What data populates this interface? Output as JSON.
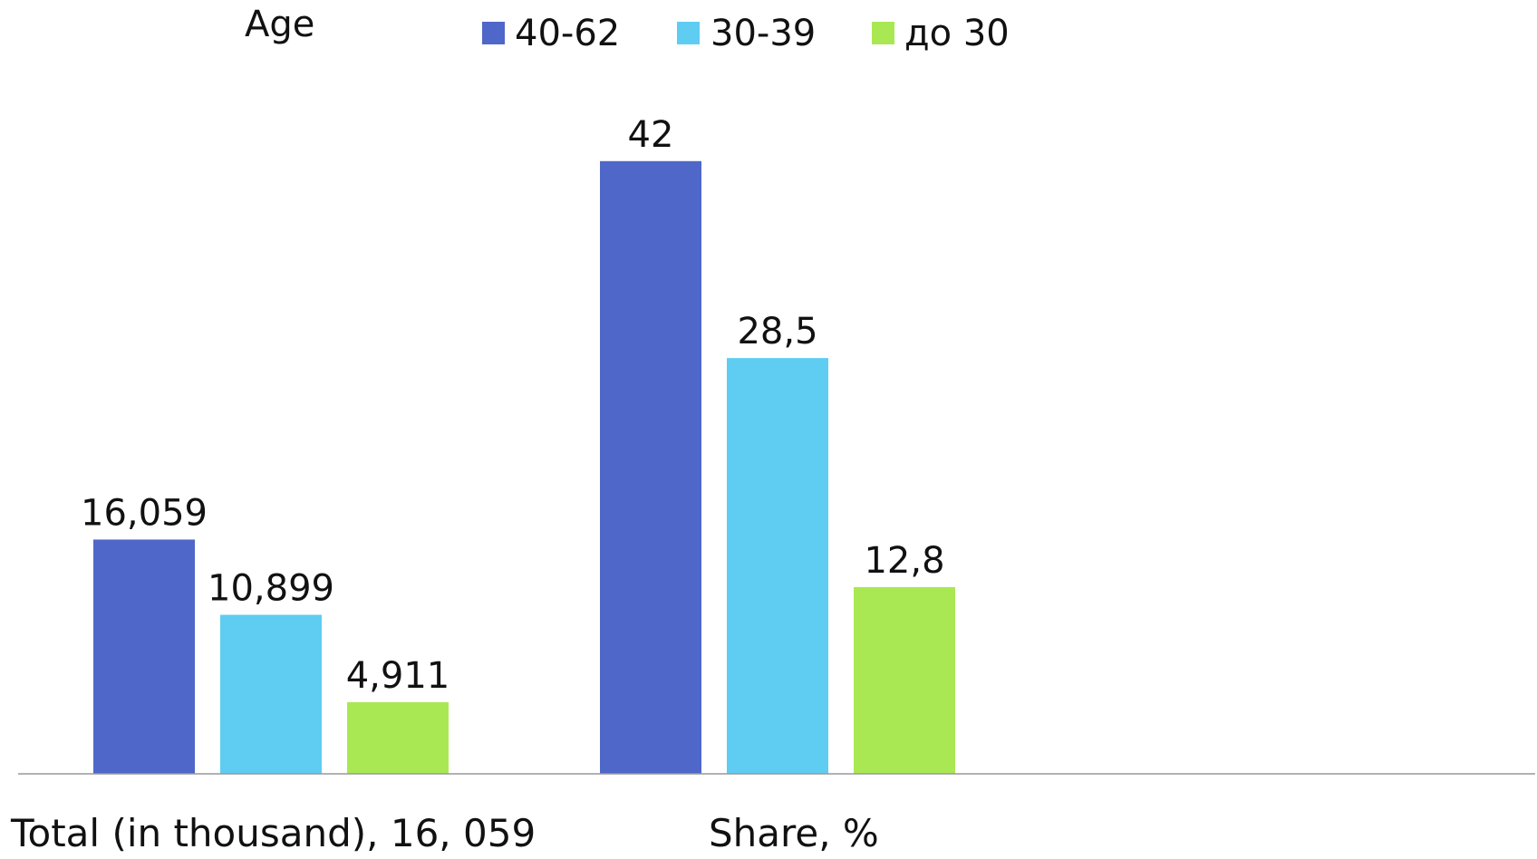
{
  "legend": {
    "title": "Age",
    "items": [
      {
        "label": "40-62",
        "color": "#4F67C8"
      },
      {
        "label": "30-39",
        "color": "#5FCCF2"
      },
      {
        "label": "до 30",
        "color": "#A9E853"
      }
    ]
  },
  "chart_data": {
    "type": "bar",
    "categories": [
      "Total (in thousand), 16, 059",
      "Share, %"
    ],
    "series": [
      {
        "name": "40-62",
        "color": "#4F67C8",
        "values": [
          16.059,
          42
        ],
        "labels": [
          "16,059",
          "42"
        ]
      },
      {
        "name": "30-39",
        "color": "#5FCCF2",
        "values": [
          10.899,
          28.5
        ],
        "labels": [
          "10,899",
          "28,5"
        ]
      },
      {
        "name": "до 30",
        "color": "#A9E853",
        "values": [
          4.911,
          12.8
        ],
        "labels": [
          "4,911",
          "12,8"
        ]
      }
    ],
    "ylim": [
      0,
      50
    ],
    "grid": false,
    "legend_position": "top-center",
    "axis_color": "#999999"
  }
}
